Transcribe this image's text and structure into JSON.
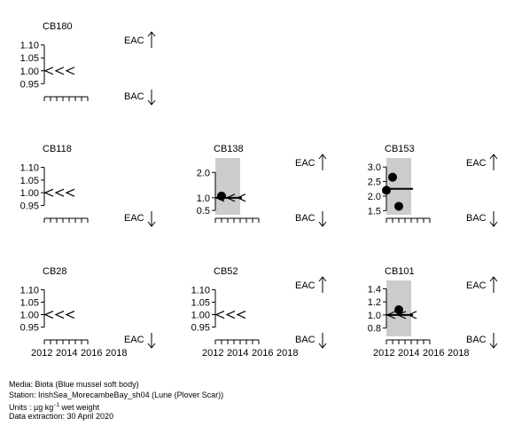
{
  "chart_data": {
    "type": "scatter",
    "x_tick_labels": [
      "2012",
      "2014",
      "2016",
      "2018"
    ],
    "panels": [
      {
        "name": "CB180",
        "yticks": [
          {
            "v": 1.1,
            "label": "1.10"
          },
          {
            "v": 1.05,
            "label": "1.05"
          },
          {
            "v": 1.0,
            "label": "1.00"
          },
          {
            "v": 0.95,
            "label": "0.95"
          }
        ],
        "ylim": [
          0.92,
          1.13
        ],
        "upper_label": "EAC",
        "lower_label": "BAC",
        "points": [],
        "below_bac": true
      },
      {
        "name": "CB118",
        "yticks": [
          {
            "v": 1.1,
            "label": "1.10"
          },
          {
            "v": 1.05,
            "label": "1.05"
          },
          {
            "v": 1.0,
            "label": "1.00"
          },
          {
            "v": 0.95,
            "label": "0.95"
          }
        ],
        "ylim": [
          0.92,
          1.13
        ],
        "upper_label": "",
        "lower_label": "EAC",
        "points": [],
        "below_bac": true
      },
      {
        "name": "CB138",
        "yticks": [
          {
            "v": 2.0,
            "label": "2.0"
          },
          {
            "v": 1.0,
            "label": "1.0"
          },
          {
            "v": 0.5,
            "label": "0.5"
          }
        ],
        "ylim": [
          0.4,
          2.5
        ],
        "upper_label": "EAC",
        "lower_label": "BAC",
        "points": [
          {
            "year": 2013,
            "value": 1.07
          }
        ],
        "trend": 1.0,
        "below_bac": true
      },
      {
        "name": "CB153",
        "yticks": [
          {
            "v": 3.0,
            "label": "3.0"
          },
          {
            "v": 2.5,
            "label": "2.5"
          },
          {
            "v": 2.0,
            "label": "2.0"
          },
          {
            "v": 1.5,
            "label": "1.5"
          }
        ],
        "ylim": [
          1.42,
          3.25
        ],
        "upper_label": "EAC",
        "lower_label": "BAC",
        "points": [
          {
            "year": 2012,
            "value": 2.2
          },
          {
            "year": 2013,
            "value": 2.65
          },
          {
            "year": 2014,
            "value": 1.65
          }
        ],
        "trend": 2.25,
        "below_bac": false
      },
      {
        "name": "CB28",
        "yticks": [
          {
            "v": 1.1,
            "label": "1.10"
          },
          {
            "v": 1.05,
            "label": "1.05"
          },
          {
            "v": 1.0,
            "label": "1.00"
          },
          {
            "v": 0.95,
            "label": "0.95"
          }
        ],
        "ylim": [
          0.92,
          1.13
        ],
        "upper_label": "",
        "lower_label": "EAC",
        "points": [],
        "below_bac": true
      },
      {
        "name": "CB52",
        "yticks": [
          {
            "v": 1.1,
            "label": "1.10"
          },
          {
            "v": 1.05,
            "label": "1.05"
          },
          {
            "v": 1.0,
            "label": "1.00"
          },
          {
            "v": 0.95,
            "label": "0.95"
          }
        ],
        "ylim": [
          0.92,
          1.13
        ],
        "upper_label": "EAC",
        "lower_label": "BAC",
        "points": [],
        "below_bac": true
      },
      {
        "name": "CB101",
        "yticks": [
          {
            "v": 1.4,
            "label": "1.4"
          },
          {
            "v": 1.2,
            "label": "1.2"
          },
          {
            "v": 1.0,
            "label": "1.0"
          },
          {
            "v": 0.8,
            "label": "0.8"
          }
        ],
        "ylim": [
          0.7,
          1.5
        ],
        "upper_label": "EAC",
        "lower_label": "BAC",
        "points": [
          {
            "year": 2014,
            "value": 1.08
          }
        ],
        "trend": 1.0,
        "below_bac": true
      }
    ]
  },
  "footer": {
    "media": "Media: Biota (Blue mussel soft body)",
    "station": "Station: IrishSea_MorecambeBay_sh04 (Lune (Plover Scar))",
    "units_prefix": "Units : µg kg",
    "units_exp": "−1",
    "units_suffix": " wet weight",
    "extraction": "Data extraction: 30 April 2020"
  }
}
